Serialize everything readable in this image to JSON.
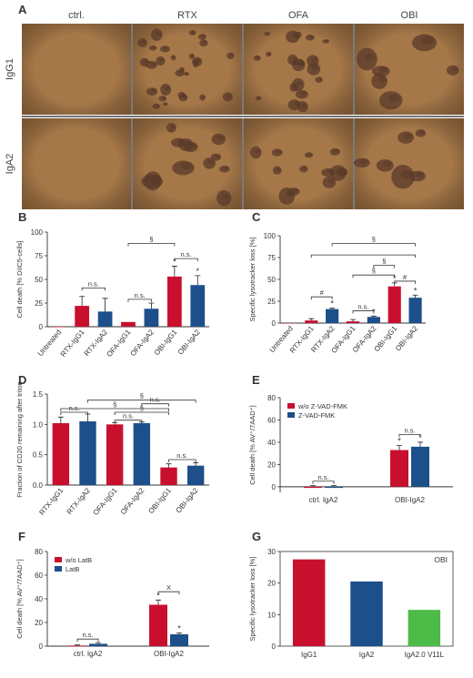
{
  "panels": {
    "A": {
      "label": "A",
      "columns": [
        "ctrl.",
        "RTX",
        "OFA",
        "OBI"
      ],
      "rows": [
        "IgG1",
        "IgA2"
      ]
    },
    "B": {
      "label": "B"
    },
    "C": {
      "label": "C"
    },
    "D": {
      "label": "D"
    },
    "E": {
      "label": "E"
    },
    "F": {
      "label": "F"
    },
    "G": {
      "label": "G"
    }
  },
  "colors": {
    "red": "#c8102e",
    "blue": "#1d4f8a",
    "green": "#4cbb47",
    "micrograph_bg": "#a8743f",
    "cluster": "#5a3a2a"
  },
  "chart_data": [
    {
      "id": "B",
      "type": "bar",
      "ylabel": "Cell death [% DiIC5-cells]",
      "ylim": [
        0,
        100
      ],
      "yticks": [
        "0",
        "25",
        "50",
        "75",
        "100"
      ],
      "ytick_values": [
        0,
        25,
        50,
        75,
        100
      ],
      "categories": [
        "Untreated",
        "RTX-IgG1",
        "RTX-IgA2",
        "OFA-IgG1",
        "OFA-IgA2",
        "OBI-IgG1",
        "OBI-IgA2"
      ],
      "values": [
        0,
        22,
        16,
        5,
        19,
        53,
        44
      ],
      "errors": [
        0,
        10,
        14,
        0,
        6,
        11,
        10
      ],
      "bar_colors": [
        "red",
        "red",
        "blue",
        "red",
        "blue",
        "red",
        "blue"
      ],
      "stars": [
        5,
        6
      ],
      "brackets": [
        {
          "from": 1,
          "to": 2,
          "text": "n.s.",
          "y": 41
        },
        {
          "from": 3,
          "to": 4,
          "text": "n.s.",
          "y": 29
        },
        {
          "from": 3,
          "to": 5,
          "text": "§",
          "y": 88
        },
        {
          "from": 5,
          "to": 6,
          "text": "n.s.",
          "y": 72
        }
      ]
    },
    {
      "id": "C",
      "type": "bar",
      "ylabel": "Specific lysotracker loss [%]",
      "ylim": [
        0,
        100
      ],
      "yticks": [
        "0",
        "25",
        "50",
        "75",
        "100"
      ],
      "ytick_values": [
        0,
        25,
        50,
        75,
        100
      ],
      "categories": [
        "Untreated",
        "RTX-IgG1",
        "RTX-IgA2",
        "OFA-IgG1",
        "OFA-IgA2",
        "OBI-IgG1",
        "OBI-IgA2"
      ],
      "values": [
        0,
        3,
        16,
        2,
        7,
        42,
        29
      ],
      "errors": [
        0,
        2,
        1,
        2,
        1,
        4,
        3
      ],
      "bar_colors": [
        "red",
        "red",
        "blue",
        "red",
        "blue",
        "red",
        "blue"
      ],
      "stars": [
        2,
        4,
        5,
        6
      ],
      "brackets": [
        {
          "from": 1,
          "to": 2,
          "text": "#",
          "y": 30
        },
        {
          "from": 3,
          "to": 4,
          "text": "n.s.",
          "y": 14
        },
        {
          "from": 5,
          "to": 6,
          "text": "#",
          "y": 48
        },
        {
          "from": 1,
          "to": 6,
          "text": "",
          "y": 78
        },
        {
          "from": 3,
          "to": 5,
          "text": "§",
          "y": 55
        },
        {
          "from": 2,
          "to": 6,
          "text": "§",
          "y": 91
        },
        {
          "from": 4,
          "to": 5,
          "text": "§",
          "y": 66
        }
      ]
    },
    {
      "id": "D",
      "type": "bar",
      "ylabel": "Fraction of CD20 remaining after triton",
      "ylim": [
        0,
        1.5
      ],
      "yticks": [
        "0.0",
        "0.5",
        "1.0",
        "1.5"
      ],
      "ytick_values": [
        0,
        0.5,
        1.0,
        1.5
      ],
      "categories": [
        "RTX-IgG1",
        "RTX-IgA2",
        "OFA-IgG1",
        "OFA-IgA2",
        "OBI-IgG1",
        "OBI-IgA2"
      ],
      "values": [
        1.02,
        1.05,
        1.0,
        1.02,
        0.29,
        0.32
      ],
      "errors": [
        0.1,
        0.12,
        0.03,
        0.02,
        0.06,
        0.05
      ],
      "bar_colors": [
        "red",
        "blue",
        "red",
        "blue",
        "red",
        "blue"
      ],
      "stars": [],
      "brackets": [
        {
          "from": 0,
          "to": 1,
          "text": "n.s.",
          "y": 1.2
        },
        {
          "from": 2,
          "to": 3,
          "text": "n.s.",
          "y": 1.07
        },
        {
          "from": 4,
          "to": 5,
          "text": "n.s.",
          "y": 0.42
        },
        {
          "from": 0,
          "to": 4,
          "text": "§",
          "y": 1.26
        },
        {
          "from": 1,
          "to": 5,
          "text": "§",
          "y": 1.4
        },
        {
          "from": 2,
          "to": 4,
          "text": "§",
          "y": 1.2
        },
        {
          "from": 3,
          "to": 4,
          "text": "n.s.",
          "y": 1.34
        }
      ]
    },
    {
      "id": "E",
      "type": "grouped-bar",
      "ylabel": "Cell death [% AV⁺/7AAD⁺]",
      "ylim": [
        -5,
        80
      ],
      "yticks": [
        "0",
        "20",
        "40",
        "60",
        "80"
      ],
      "ytick_values": [
        0,
        20,
        40,
        60,
        80
      ],
      "categories": [
        "ctrl. IgA2",
        "OBI-IgA2"
      ],
      "series": [
        {
          "name": "w/o Z-VAD-FMK",
          "color": "red",
          "values": [
            -1,
            33
          ],
          "errors": [
            1,
            4
          ]
        },
        {
          "name": "Z-VAD-FMK",
          "color": "blue",
          "values": [
            -1,
            36
          ],
          "errors": [
            1,
            4
          ]
        }
      ],
      "stars": [
        [
          1,
          0
        ],
        [
          1,
          1
        ]
      ],
      "brackets": [
        {
          "group": 0,
          "text": "n.s.",
          "y": 5
        },
        {
          "group": 1,
          "text": "n.s.",
          "y": 47
        }
      ],
      "legend": "top-left"
    },
    {
      "id": "F",
      "type": "grouped-bar",
      "ylabel": "Cell death [% AV⁺/7AAD⁺]",
      "ylim": [
        0,
        80
      ],
      "yticks": [
        "0",
        "20",
        "40",
        "60",
        "80"
      ],
      "ytick_values": [
        0,
        20,
        40,
        60,
        80
      ],
      "categories": [
        "ctrl. IgA2",
        "OBI-IgA2"
      ],
      "series": [
        {
          "name": "w/o LatB",
          "color": "red",
          "values": [
            0.5,
            35
          ],
          "errors": [
            0.5,
            4
          ]
        },
        {
          "name": "LatB",
          "color": "blue",
          "values": [
            2,
            10
          ],
          "errors": [
            1,
            1
          ]
        }
      ],
      "stars": [
        [
          1,
          0
        ],
        [
          1,
          1
        ]
      ],
      "brackets": [
        {
          "group": 0,
          "text": "n.s.",
          "y": 6
        },
        {
          "group": 1,
          "text": "X",
          "y": 46
        }
      ],
      "legend": "top-left"
    },
    {
      "id": "G",
      "type": "bar",
      "ylabel": "Specific lysotracker loss [%]",
      "ylim": [
        0,
        30
      ],
      "yticks": [
        "0",
        "10",
        "20",
        "30"
      ],
      "ytick_values": [
        0,
        10,
        20,
        30
      ],
      "categories": [
        "IgG1",
        "IgA2",
        "IgA2.0 V11L"
      ],
      "values": [
        27.5,
        20.5,
        11.5
      ],
      "bar_colors": [
        "red",
        "blue",
        "green"
      ],
      "annotation": "OBI"
    }
  ]
}
